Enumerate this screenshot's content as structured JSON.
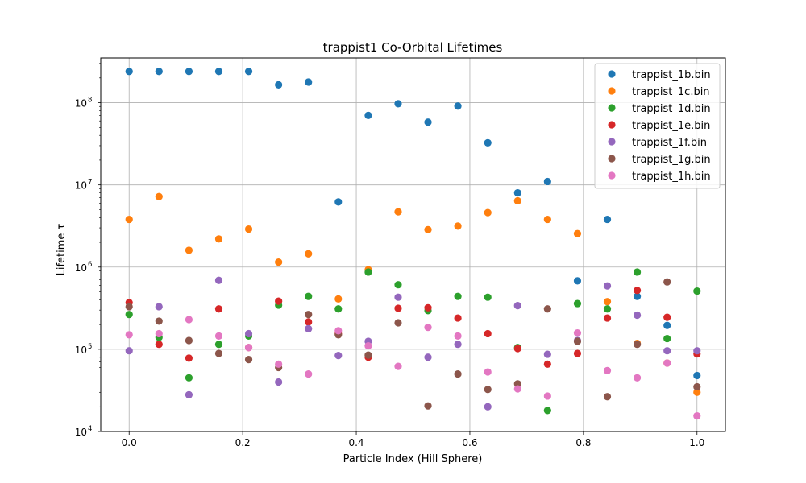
{
  "chart_data": {
    "type": "scatter",
    "title": "trappist1 Co-Orbital Lifetimes",
    "xlabel": "Particle Index (Hill Sphere)",
    "ylabel": "Lifetime τ",
    "xlim": [
      -0.05,
      1.05
    ],
    "ylim": [
      10000,
      350000000
    ],
    "yscale": "log",
    "grid": true,
    "legend_position": "top-right",
    "x_ticks": [
      {
        "value": 0.0,
        "label": "0.0"
      },
      {
        "value": 0.2,
        "label": "0.2"
      },
      {
        "value": 0.4,
        "label": "0.4"
      },
      {
        "value": 0.6,
        "label": "0.6"
      },
      {
        "value": 0.8,
        "label": "0.8"
      },
      {
        "value": 1.0,
        "label": "1.0"
      }
    ],
    "y_ticks": [
      {
        "value": 10000,
        "base": "10",
        "exp": "4"
      },
      {
        "value": 100000,
        "base": "10",
        "exp": "5"
      },
      {
        "value": 1000000,
        "base": "10",
        "exp": "6"
      },
      {
        "value": 10000000,
        "base": "10",
        "exp": "7"
      },
      {
        "value": 100000000,
        "base": "10",
        "exp": "8"
      }
    ],
    "x": [
      0.0,
      0.0526,
      0.1053,
      0.1579,
      0.2105,
      0.2632,
      0.3158,
      0.3684,
      0.4211,
      0.4737,
      0.5263,
      0.5789,
      0.6316,
      0.6842,
      0.7368,
      0.7895,
      0.8421,
      0.8947,
      0.9474,
      1.0
    ],
    "series": [
      {
        "name": "trappist_1b.bin",
        "color": "#1f77b4",
        "values": [
          240000000,
          240000000,
          240000000,
          240000000,
          240000000,
          165000000,
          178000000,
          6200000,
          70000000,
          97000000,
          58000000,
          91000000,
          32500000,
          8000000,
          11000000,
          680000,
          3800000,
          440000,
          195000,
          48000
        ]
      },
      {
        "name": "trappist_1c.bin",
        "color": "#ff7f0e",
        "values": [
          3800000,
          7200000,
          1600000,
          2200000,
          2900000,
          1150000,
          1450000,
          410000,
          930000,
          4700000,
          2850000,
          3150000,
          4600000,
          6400000,
          3800000,
          2550000,
          380000,
          118000,
          68000,
          30000
        ]
      },
      {
        "name": "trappist_1d.bin",
        "color": "#2ca02c",
        "values": [
          265000,
          140000,
          45000,
          115000,
          145000,
          345000,
          440000,
          310000,
          870000,
          610000,
          295000,
          440000,
          430000,
          105000,
          18000,
          360000,
          310000,
          870000,
          135000,
          510000
        ]
      },
      {
        "name": "trappist_1e.bin",
        "color": "#d62728",
        "values": [
          370000,
          115000,
          78000,
          310000,
          105000,
          385000,
          215000,
          155000,
          80000,
          315000,
          320000,
          240000,
          155000,
          102000,
          66000,
          89000,
          240000,
          520000,
          245000,
          88000
        ]
      },
      {
        "name": "trappist_1f.bin",
        "color": "#9467bd",
        "values": [
          96000,
          330000,
          28000,
          690000,
          155000,
          40000,
          178000,
          84000,
          125000,
          430000,
          80000,
          115000,
          20000,
          340000,
          87000,
          128000,
          590000,
          260000,
          96000,
          96000
        ]
      },
      {
        "name": "trappist_1g.bin",
        "color": "#8c564b",
        "values": [
          330000,
          220000,
          128000,
          89000,
          75000,
          60000,
          265000,
          150000,
          85000,
          210000,
          20500,
          50000,
          32500,
          38000,
          310000,
          125000,
          26500,
          115000,
          660000,
          35000
        ]
      },
      {
        "name": "trappist_1h.bin",
        "color": "#e377c2",
        "values": [
          150000,
          155000,
          230000,
          145000,
          105000,
          66000,
          50000,
          168000,
          110000,
          62000,
          185000,
          145000,
          53000,
          33000,
          27000,
          158000,
          55000,
          45000,
          68000,
          15500
        ]
      }
    ]
  }
}
